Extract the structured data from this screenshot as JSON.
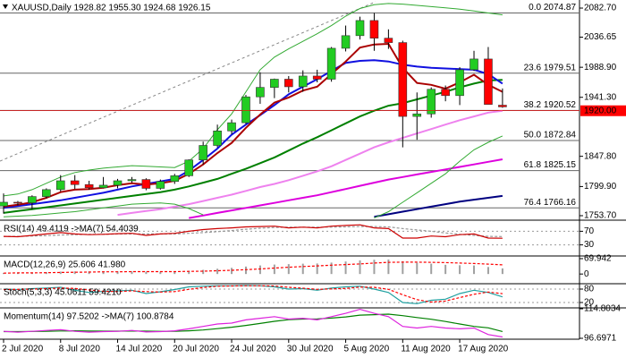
{
  "chart_data": [
    {
      "type": "candlestick",
      "title": "XAUUSD,Daily  1928.82 1955.30 1924.68 1926.15",
      "categories": [
        "2 Jul 2020",
        null,
        null,
        null,
        "8 Jul 2020",
        null,
        null,
        null,
        "14 Jul 2020",
        null,
        null,
        null,
        "20 Jul 2020",
        null,
        null,
        null,
        "24 Jul 2020",
        null,
        null,
        null,
        "30 Jul 2020",
        null,
        null,
        null,
        "5 Aug 2020",
        null,
        null,
        null,
        "11 Aug 2020",
        null,
        null,
        null,
        "17 Aug 2020",
        null,
        null,
        null
      ],
      "open": [
        1769,
        1775,
        1774,
        1784,
        1795,
        1809,
        1803,
        1798,
        1802,
        1809,
        1811,
        1797,
        1808,
        1817,
        1842,
        1865,
        1888,
        1901,
        1942,
        1957,
        1970,
        1958,
        1975,
        1970,
        2019,
        2039,
        2063,
        2035,
        2028,
        1911,
        1915,
        1954,
        1944,
        1985,
        2002,
        1928.82
      ],
      "high": [
        1789,
        1777,
        1786,
        1797,
        1818,
        1818,
        1809,
        1815,
        1812,
        1815,
        1813,
        1811,
        1820,
        1843,
        1871,
        1898,
        1906,
        1945,
        1981,
        1971,
        1975,
        1984,
        1985,
        2021,
        2055,
        2069,
        2075,
        2049,
        2031,
        1949,
        1957,
        1960,
        1989,
        2015,
        2021,
        1955.3
      ],
      "low": [
        1757,
        1770,
        1764,
        1781,
        1792,
        1796,
        1795,
        1797,
        1797,
        1806,
        1794,
        1795,
        1804,
        1815,
        1835,
        1862,
        1883,
        1899,
        1931,
        1940,
        1949,
        1950,
        1965,
        1966,
        2014,
        2033,
        2015,
        2018,
        1862,
        1874,
        1909,
        1935,
        1929,
        1983,
        1930,
        1924.68
      ],
      "close": [
        1775,
        1774,
        1784,
        1795,
        1809,
        1803,
        1798,
        1802,
        1809,
        1811,
        1797,
        1808,
        1817,
        1842,
        1865,
        1888,
        1901,
        1942,
        1957,
        1970,
        1958,
        1975,
        1970,
        2019,
        2039,
        2063,
        2035,
        2028,
        1911,
        1915,
        1954,
        1944,
        1985,
        2002,
        1930,
        1926.15
      ],
      "up_color": "#22cc22",
      "down_color": "#ff0000",
      "overlays": [
        {
          "color": "#ee82ee",
          "values": [
            null,
            null,
            null,
            null,
            null,
            null,
            null,
            null,
            1755,
            1758,
            1761,
            1764,
            1768,
            1772,
            1777,
            1782,
            1787,
            1793,
            1799,
            1804,
            1810,
            1817,
            1824,
            1832,
            1842,
            1852,
            1862,
            1870,
            1877,
            1884,
            1891,
            1898,
            1905,
            1911,
            1917,
            1920
          ]
        },
        {
          "color": "#dd00dd",
          "values": [
            null,
            null,
            null,
            null,
            null,
            null,
            null,
            null,
            null,
            null,
            null,
            null,
            null,
            1750,
            1754,
            1758,
            1762,
            1766,
            1770,
            1774,
            1778,
            1782,
            1786,
            1791,
            1796,
            1801,
            1806,
            1811,
            1815,
            1819,
            1823,
            1827,
            1831,
            1835,
            1839,
            1843
          ]
        },
        {
          "color": "#000080",
          "values": [
            null,
            null,
            null,
            null,
            null,
            null,
            null,
            null,
            null,
            null,
            null,
            null,
            null,
            null,
            null,
            null,
            null,
            null,
            null,
            null,
            null,
            null,
            null,
            null,
            null,
            null,
            1752,
            1756,
            1760,
            1764,
            1768,
            1772,
            1776,
            1779,
            1782,
            1785
          ]
        },
        {
          "color": "#33aa33",
          "thin": true,
          "values": [
            1785,
            1788,
            1795,
            1805,
            1815,
            1822,
            1826,
            1829,
            1831,
            1833,
            1832,
            1831,
            1830,
            1840,
            1860,
            1890,
            1915,
            1950,
            1985,
            2005,
            2018,
            2030,
            2042,
            2055,
            2070,
            2082,
            2088,
            2090,
            2089,
            2087,
            2085,
            2083,
            2081,
            2078,
            2075,
            2072
          ]
        },
        {
          "color": "#33aa33",
          "thin": true,
          "values": [
            1752,
            1753,
            1754,
            1756,
            1758,
            1760,
            1763,
            1766,
            1769,
            1772,
            1773,
            1774,
            1772,
            1765,
            1755,
            null,
            null,
            null,
            null,
            null,
            null,
            null,
            null,
            null,
            null,
            null,
            1750,
            1760,
            1775,
            1790,
            1805,
            1820,
            1840,
            1858,
            1870,
            1880
          ]
        },
        {
          "color": "#008000",
          "values": [
            1758,
            1761,
            1764,
            1767,
            1770,
            1773,
            1776,
            1779,
            1782,
            1785,
            1788,
            1791,
            1795,
            1800,
            1806,
            1812,
            1820,
            1828,
            1837,
            1846,
            1857,
            1868,
            1878,
            1889,
            1900,
            1911,
            1920,
            1928,
            1932,
            1938,
            1944,
            1950,
            1957,
            1963,
            1968,
            1969
          ]
        },
        {
          "color": "#1010e0",
          "values": [
            1766,
            1769,
            1772,
            1775,
            1778,
            1782,
            1786,
            1790,
            1795,
            1800,
            1804,
            1808,
            1812,
            1825,
            1842,
            1860,
            1882,
            1898,
            1913,
            1929,
            1946,
            1958,
            1970,
            1983,
            1996,
            1999,
            2000,
            1998,
            1993,
            1990,
            1988,
            1987,
            1986,
            1985,
            1978,
            1963
          ]
        },
        {
          "color": "#aa0000",
          "values": [
            1768,
            1771,
            1775,
            1782,
            1791,
            1795,
            1796,
            1798,
            1802,
            1805,
            1803,
            1805,
            1809,
            1820,
            1835,
            1853,
            1869,
            1893,
            1914,
            1933,
            1941,
            1952,
            1958,
            1978,
            1998,
            2020,
            2025,
            2026,
            1988,
            1964,
            1961,
            1955,
            1965,
            1977,
            1961,
            1950
          ]
        }
      ],
      "levels": [
        {
          "value": 2074.87,
          "label": "0.0 2074.87"
        },
        {
          "value": 1979.51,
          "label": "23.6 1979.51"
        },
        {
          "value": 1920.52,
          "label": "38.2 1920.52"
        },
        {
          "value": 1872.84,
          "label": "50.0 1872.84"
        },
        {
          "value": 1825.15,
          "label": "61.8 1825.15"
        },
        {
          "value": 1766.16,
          "label": "76.4 1766.16"
        }
      ],
      "last_price": {
        "value": 1920,
        "label": "1920.00"
      },
      "ylim": [
        1748,
        2095.5
      ],
      "yticks": [
        {
          "value": 2082.7,
          "label": "2082.70"
        },
        2036.65,
        {
          "value": 1988.9,
          "label": "1988.90"
        },
        {
          "value": 1941.3,
          "label": "1941.30"
        },
        {
          "value": 1847.8,
          "label": "1847.80"
        },
        {
          "value": 1799.9,
          "label": "1799.90"
        },
        {
          "value": 1753.7,
          "label": "1753.70"
        }
      ]
    },
    {
      "type": "line",
      "title": "RSI(14) 49.4119 ->MA(7) 54.4039",
      "series": [
        {
          "color": "#999999",
          "dash": true,
          "values": [
            55,
            55,
            56,
            57,
            59,
            60,
            61,
            61,
            62,
            62,
            62,
            62,
            62,
            64,
            66,
            69,
            72,
            76,
            79,
            81,
            82,
            82,
            82,
            82,
            83,
            84,
            84,
            83,
            78,
            74,
            70,
            65,
            61,
            58,
            55,
            54.4039
          ]
        },
        {
          "color": "#cc0000",
          "values": [
            55,
            54,
            58,
            62,
            66,
            62,
            60,
            61,
            63,
            64,
            58,
            62,
            64,
            70,
            75,
            78,
            80,
            83,
            84,
            85,
            80,
            82,
            80,
            85,
            87,
            89,
            80,
            78,
            50,
            50,
            56,
            54,
            60,
            62,
            50,
            49.4119
          ]
        }
      ],
      "ylim": [
        0,
        100
      ],
      "yticks": [
        70,
        30
      ],
      "grid": true
    },
    {
      "type": "bar",
      "title": "MACD(12,26,9) 25.606 41.980",
      "color": "#a0a0a0",
      "values": [
        5,
        6,
        7,
        9,
        11,
        12,
        12,
        12,
        12,
        12,
        11,
        11,
        12,
        15,
        19,
        24,
        28,
        34,
        39,
        43,
        45,
        47,
        48,
        52,
        57,
        62,
        65,
        66,
        58,
        51,
        47,
        42,
        40,
        39,
        32,
        25.606
      ],
      "series": [
        {
          "color": "#ff0000",
          "dash": true,
          "values": [
            4,
            5,
            5,
            6,
            7,
            8,
            9,
            10,
            10,
            11,
            11,
            11,
            11,
            12,
            13,
            15,
            17,
            20,
            23,
            27,
            31,
            34,
            37,
            40,
            43,
            46,
            50,
            53,
            54,
            54,
            53,
            52,
            50,
            48,
            45,
            41.98
          ]
        }
      ],
      "ylim": [
        -40,
        78
      ],
      "yticks": [
        69.942,
        0
      ]
    },
    {
      "type": "line",
      "title": "Stoch(5,3,3) 45.0611 59.4210",
      "series": [
        {
          "color": "#20a0a0",
          "values": [
            80,
            78,
            82,
            85,
            88,
            75,
            65,
            70,
            72,
            75,
            60,
            68,
            78,
            90,
            93,
            95,
            95,
            96,
            95,
            90,
            80,
            82,
            75,
            85,
            90,
            93,
            80,
            65,
            20,
            15,
            30,
            35,
            60,
            75,
            65,
            45.0611
          ]
        },
        {
          "color": "#ff0000",
          "dash": true,
          "values": [
            78,
            79,
            80,
            82,
            85,
            83,
            76,
            70,
            69,
            72,
            69,
            67,
            69,
            79,
            87,
            93,
            94,
            95,
            95,
            94,
            88,
            84,
            79,
            81,
            83,
            89,
            88,
            79,
            55,
            33,
            22,
            27,
            42,
            57,
            67,
            59.421
          ]
        }
      ],
      "ylim": [
        0,
        100
      ],
      "yticks": [
        80,
        20
      ],
      "grid": true
    },
    {
      "type": "line",
      "title": "Momentum(14) 97.5202 ->MA(7) 100.8784",
      "series": [
        {
          "color": "#008000",
          "values": [
            100.8,
            100.8,
            100.9,
            101,
            101.2,
            101.3,
            101.2,
            101.1,
            101.1,
            101.2,
            101.1,
            101,
            101,
            101.3,
            101.8,
            102.6,
            103.5,
            104.6,
            105.8,
            107.1,
            108.1,
            108.5,
            108.6,
            109.1,
            109.8,
            110.9,
            111.2,
            111.5,
            110.6,
            109.4,
            108.4,
            107,
            105.5,
            104,
            103.1,
            100.8784
          ]
        },
        {
          "color": "#dd22dd",
          "values": [
            101,
            100.5,
            101,
            101.5,
            102,
            101,
            100.5,
            100.8,
            101,
            101.5,
            100.6,
            100.8,
            101.3,
            102.5,
            104,
            105.5,
            106,
            108,
            109,
            110,
            108.5,
            109,
            108,
            110,
            112,
            114.5,
            112,
            110,
            104,
            103,
            104,
            103,
            102.5,
            103,
            99,
            97.5202
          ]
        }
      ],
      "ylim": [
        96.6971,
        114.8034
      ],
      "yticks": [
        114.8034,
        96.6971
      ]
    }
  ]
}
